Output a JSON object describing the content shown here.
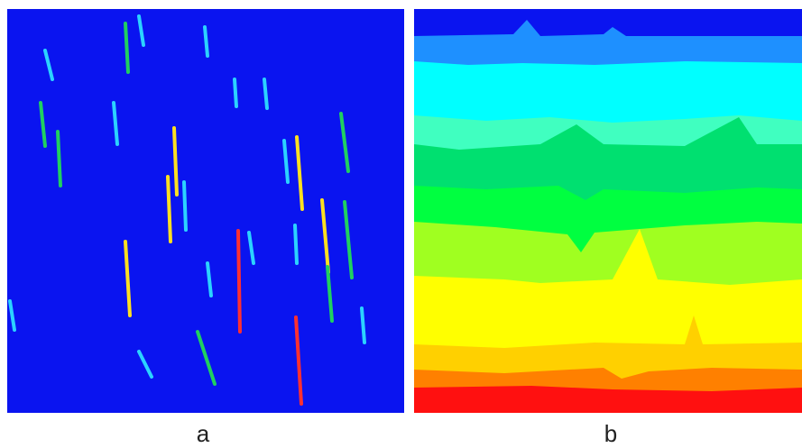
{
  "panels": [
    {
      "caption": "a",
      "background": "#0a14f0",
      "stripe_colors": [
        "#1ab0e8",
        "#2bd3ff",
        "#20d060",
        "#ffe020",
        "#ff3030"
      ]
    },
    {
      "caption": "b",
      "band_colors": [
        "#0a14f0",
        "#1e90ff",
        "#00ffff",
        "#40ffc0",
        "#00e070",
        "#00ff40",
        "#a0ff20",
        "#ffff00",
        "#ffd000",
        "#ff8000",
        "#ff1010"
      ]
    }
  ]
}
